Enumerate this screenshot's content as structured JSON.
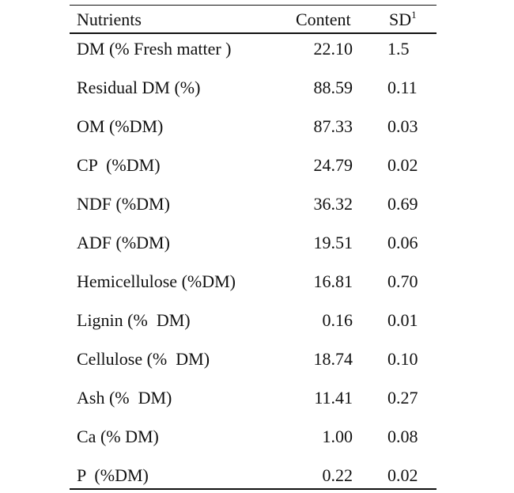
{
  "table": {
    "header": {
      "nutrients": "Nutrients",
      "content": "Content",
      "sd": "SD",
      "sd_note": "1"
    },
    "rows": [
      [
        "DM (% Fresh matter )",
        "22.10",
        "1.5"
      ],
      [
        "Residual DM (%)",
        "88.59",
        "0.11"
      ],
      [
        "OM (%DM)",
        "87.33",
        "0.03"
      ],
      [
        "CP  (%DM)",
        "24.79",
        "0.02"
      ],
      [
        "NDF (%DM)",
        "36.32",
        "0.69"
      ],
      [
        "ADF (%DM)",
        "19.51",
        "0.06"
      ],
      [
        "Hemicellulose (%DM)",
        "16.81",
        "0.70"
      ],
      [
        "Lignin (%  DM)",
        "0.16",
        "0.01"
      ],
      [
        "Cellulose (%  DM)",
        "18.74",
        "0.10"
      ],
      [
        "Ash (%  DM)",
        "11.41",
        "0.27"
      ],
      [
        "Ca (% DM)",
        "1.00",
        "0.08"
      ],
      [
        "P  (%DM)",
        "0.22",
        "0.02"
      ]
    ]
  }
}
